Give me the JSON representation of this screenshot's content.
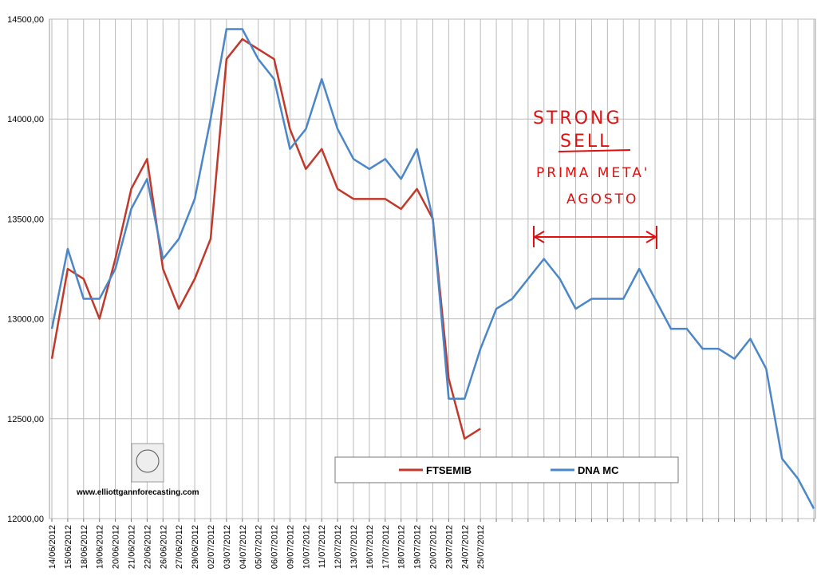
{
  "chart_data": {
    "type": "line",
    "categories": [
      "14/06/2012",
      "15/06/2012",
      "18/06/2012",
      "19/06/2012",
      "20/06/2012",
      "21/06/2012",
      "22/06/2012",
      "26/06/2012",
      "27/06/2012",
      "29/06/2012",
      "02/07/2012",
      "03/07/2012",
      "04/07/2012",
      "05/07/2012",
      "06/07/2012",
      "09/07/2012",
      "10/07/2012",
      "11/07/2012",
      "12/07/2012",
      "13/07/2012",
      "16/07/2012",
      "17/07/2012",
      "18/07/2012",
      "19/07/2012",
      "20/07/2012",
      "23/07/2012",
      "24/07/2012",
      "25/07/2012",
      null,
      null,
      null,
      null,
      null,
      null,
      null,
      null,
      null,
      null,
      null,
      null,
      null,
      null,
      null,
      null,
      null,
      null,
      null,
      null,
      null
    ],
    "series": [
      {
        "name": "FTSEMIB",
        "color": "#c0392b",
        "values": [
          12800,
          13250,
          13200,
          13000,
          13300,
          13650,
          13800,
          13250,
          13050,
          13200,
          13400,
          14300,
          14400,
          14350,
          14300,
          13950,
          13750,
          13850,
          13650,
          13600,
          13600,
          13600,
          13550,
          13650,
          13500,
          12700,
          12400,
          12450,
          null,
          null,
          null,
          null,
          null,
          null,
          null,
          null,
          null,
          null,
          null,
          null,
          null,
          null,
          null,
          null,
          null,
          null,
          null,
          null,
          null
        ]
      },
      {
        "name": "DNA MC",
        "color": "#4a86c8",
        "values": [
          12950,
          13350,
          13100,
          13100,
          13250,
          13550,
          13700,
          13300,
          13400,
          13600,
          14000,
          14450,
          14450,
          14300,
          14200,
          13850,
          13950,
          14200,
          13950,
          13800,
          13750,
          13800,
          13700,
          13850,
          13500,
          12600,
          12600,
          12850,
          13050,
          13100,
          13200,
          13300,
          13200,
          13050,
          13100,
          13100,
          13100,
          13250,
          13100,
          12950,
          12950,
          12850,
          12850,
          12800,
          12900,
          12750,
          12300,
          12200,
          12050
        ]
      }
    ],
    "ylim": [
      12000,
      14500
    ],
    "yticks": [
      {
        "value": 12000,
        "label": "12000,00"
      },
      {
        "value": 12500,
        "label": "12500,00"
      },
      {
        "value": 13000,
        "label": "13000,00"
      },
      {
        "value": 13500,
        "label": "13500,00"
      },
      {
        "value": 14000,
        "label": "14000,00"
      },
      {
        "value": 14500,
        "label": "14500,00"
      }
    ],
    "grid": true,
    "annotations": [
      "STRONG",
      "SELL",
      "PRIMA META'",
      "AGOSTO",
      "www.elliottgannforecasting.com"
    ]
  }
}
